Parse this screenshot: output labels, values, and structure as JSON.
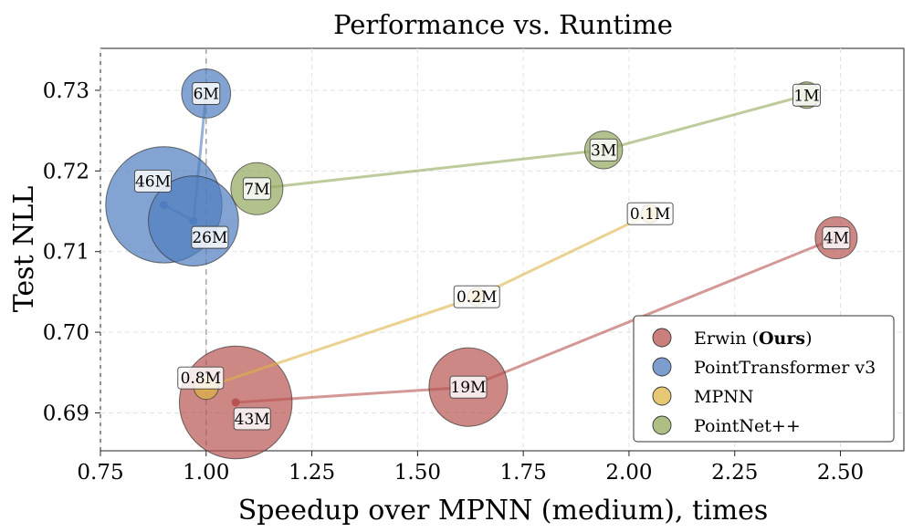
{
  "chart_data": {
    "type": "scatter",
    "title": "Performance vs. Runtime",
    "xlabel": "Speedup over MPNN (medium), times",
    "ylabel": "Test NLL",
    "xlim": [
      0.75,
      2.65
    ],
    "ylim": [
      0.6853,
      0.7352
    ],
    "xticks": [
      "0.75",
      "1.00",
      "1.25",
      "1.50",
      "1.75",
      "2.00",
      "2.25",
      "2.50"
    ],
    "xtick_values": [
      0.75,
      1.0,
      1.25,
      1.5,
      1.75,
      2.0,
      2.25,
      2.5
    ],
    "yticks": [
      "0.69",
      "0.70",
      "0.71",
      "0.72",
      "0.73"
    ],
    "ytick_values": [
      0.69,
      0.7,
      0.71,
      0.72,
      0.73
    ],
    "grid": true,
    "reference_line_x": 1.0,
    "legend_position": "bottom-right",
    "series": [
      {
        "name": "Erwin",
        "name_suffix": "Ours",
        "color": "#b85450",
        "points": [
          {
            "x": 1.07,
            "y": 0.6913,
            "label": "43M"
          },
          {
            "x": 1.62,
            "y": 0.6932,
            "label": "19M"
          },
          {
            "x": 2.49,
            "y": 0.7117,
            "label": "4M"
          }
        ]
      },
      {
        "name": "PointTransformer v3",
        "color": "#4f7dbf",
        "points": [
          {
            "x": 0.9,
            "y": 0.7158,
            "label": "46M"
          },
          {
            "x": 0.97,
            "y": 0.7138,
            "label": "26M"
          },
          {
            "x": 1.0,
            "y": 0.7296,
            "label": "6M"
          }
        ]
      },
      {
        "name": "MPNN",
        "color": "#dcb446",
        "points": [
          {
            "x": 1.0,
            "y": 0.6932,
            "label": "0.8M"
          },
          {
            "x": 1.64,
            "y": 0.7044,
            "label": "0.2M"
          },
          {
            "x": 2.05,
            "y": 0.7147,
            "label": "0.1M"
          }
        ]
      },
      {
        "name": "PointNet++",
        "color": "#93a85c",
        "points": [
          {
            "x": 1.12,
            "y": 0.7178,
            "label": "7M"
          },
          {
            "x": 1.94,
            "y": 0.7226,
            "label": "3M"
          },
          {
            "x": 2.42,
            "y": 0.7294,
            "label": "1M"
          }
        ]
      }
    ]
  }
}
